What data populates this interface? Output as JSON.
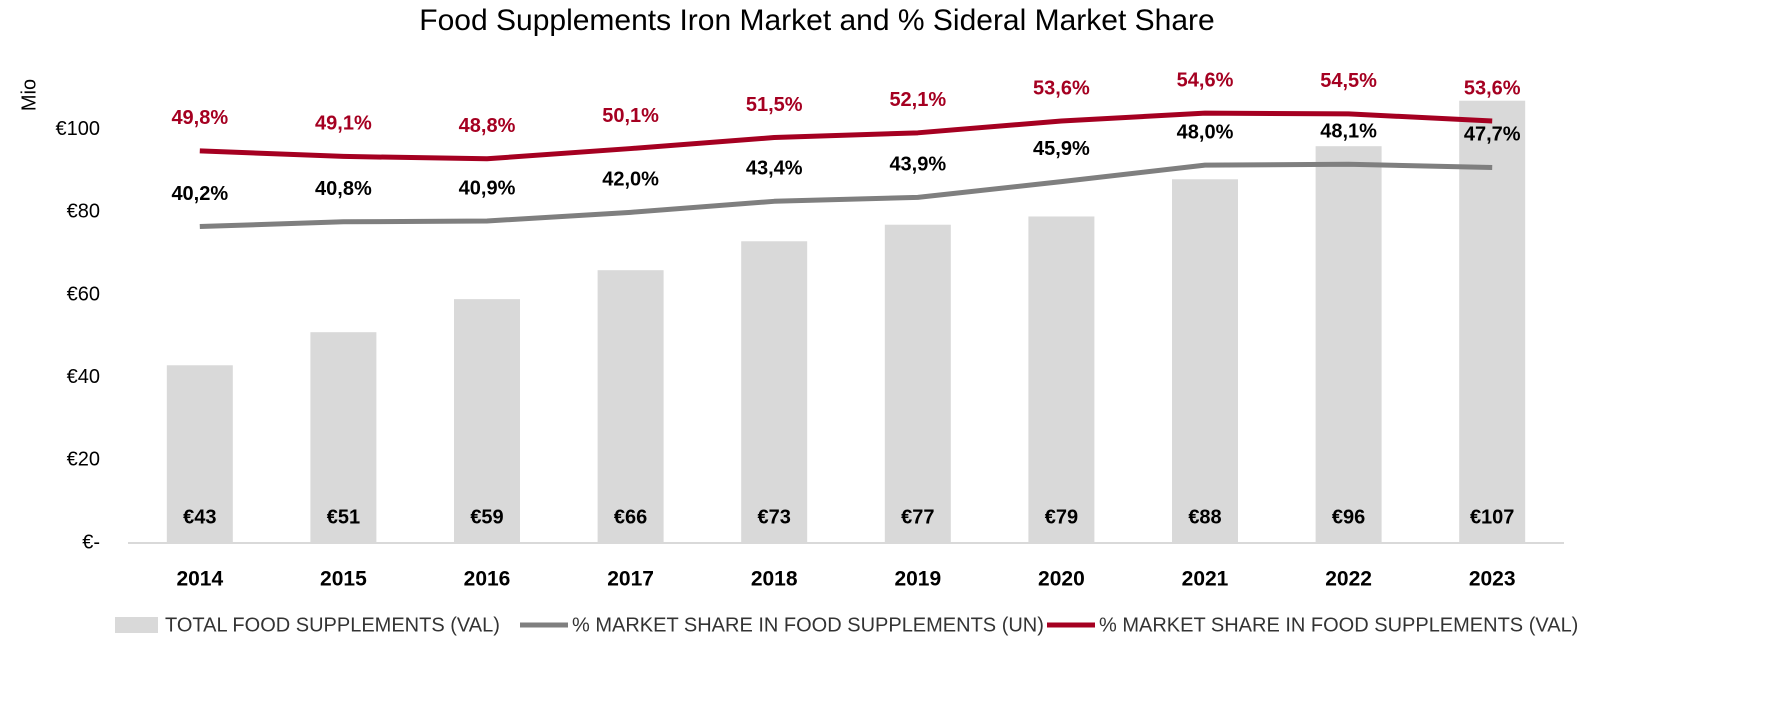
{
  "chart_data": {
    "type": "bar",
    "title": "Food Supplements Iron Market and % Sideral Market Share",
    "y_label": "Mio",
    "categories": [
      "2014",
      "2015",
      "2016",
      "2017",
      "2018",
      "2019",
      "2020",
      "2021",
      "2022",
      "2023"
    ],
    "ylim": [
      0,
      120
    ],
    "yticks": [
      {
        "value": 0,
        "label": "€-"
      },
      {
        "value": 20,
        "label": "€20"
      },
      {
        "value": 40,
        "label": "€40"
      },
      {
        "value": 60,
        "label": "€60"
      },
      {
        "value": 80,
        "label": "€80"
      },
      {
        "value": 100,
        "label": "€100"
      }
    ],
    "y2lim": [
      0,
      63
    ],
    "series": [
      {
        "name": "TOTAL FOOD SUPPLEMENTS (VAL)",
        "type": "bar",
        "color": "#d9d9d9",
        "values": [
          43,
          51,
          59,
          66,
          73,
          77,
          79,
          88,
          96,
          107
        ],
        "value_labels": [
          "€43",
          "€51",
          "€59",
          "€66",
          "€73",
          "€77",
          "€79",
          "€88",
          "€96",
          "€107"
        ]
      },
      {
        "name": "% MARKET SHARE IN FOOD SUPPLEMENTS (UN)",
        "type": "line",
        "axis": "y2",
        "color": "#7f7f7f",
        "values": [
          40.2,
          40.8,
          40.9,
          42.0,
          43.4,
          43.9,
          45.9,
          48.0,
          48.1,
          47.7
        ],
        "value_labels": [
          "40,2%",
          "40,8%",
          "40,9%",
          "42,0%",
          "43,4%",
          "43,9%",
          "45,9%",
          "48,0%",
          "48,1%",
          "47,7%"
        ]
      },
      {
        "name": "% MARKET SHARE IN FOOD SUPPLEMENTS (VAL)",
        "type": "line",
        "axis": "y2",
        "color": "#a50021",
        "values": [
          49.8,
          49.1,
          48.8,
          50.1,
          51.5,
          52.1,
          53.6,
          54.6,
          54.5,
          53.6
        ],
        "value_labels": [
          "49,8%",
          "49,1%",
          "48,8%",
          "50,1%",
          "51,5%",
          "52,1%",
          "53,6%",
          "54,6%",
          "54,5%",
          "53,6%"
        ]
      }
    ]
  }
}
